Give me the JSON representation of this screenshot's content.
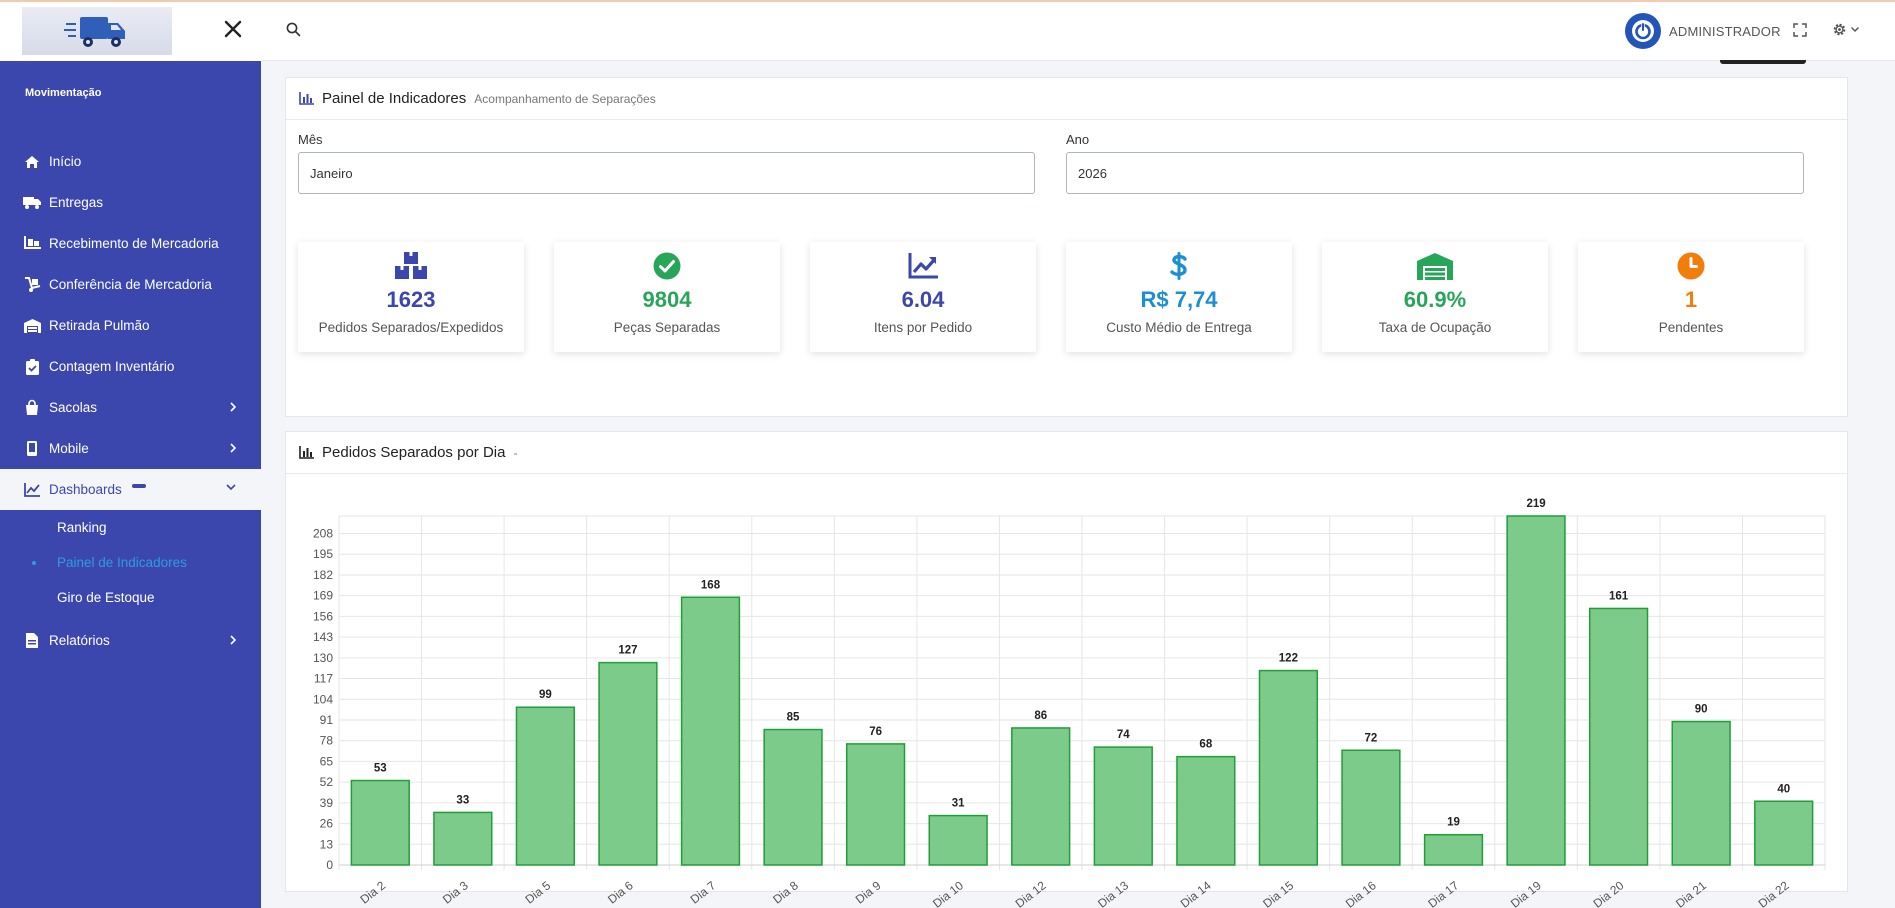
{
  "sidebar": {
    "section_title": "Movimentação",
    "items": [
      {
        "label": "Início",
        "icon": "home-icon"
      },
      {
        "label": "Entregas",
        "icon": "truck-icon"
      },
      {
        "label": "Recebimento de Mercadoria",
        "icon": "pallet-icon"
      },
      {
        "label": "Conferência de Mercadoria",
        "icon": "dolly-icon"
      },
      {
        "label": "Retirada Pulmão",
        "icon": "warehouse-icon"
      },
      {
        "label": "Contagem Inventário",
        "icon": "clipboard-check-icon"
      },
      {
        "label": "Sacolas",
        "icon": "bag-icon"
      },
      {
        "label": "Mobile",
        "icon": "mobile-icon"
      },
      {
        "label": "Dashboards",
        "icon": "chart-line-icon"
      },
      {
        "label": "Relatórios",
        "icon": "file-icon"
      }
    ],
    "dashboards_sub": [
      "Ranking",
      "Painel de Indicadores",
      "Giro de Estoque"
    ]
  },
  "header": {
    "user_name": "ADMINISTRADOR"
  },
  "panel": {
    "title": "Painel de Indicadores",
    "subtitle": "Acompanhamento de Separações",
    "mes_label": "Mês",
    "mes_value": "Janeiro",
    "ano_label": "Ano",
    "ano_value": "2026"
  },
  "kpis": [
    {
      "value": "1623",
      "label": "Pedidos Separados/Expedidos",
      "color": "#3b47ad"
    },
    {
      "value": "9804",
      "label": "Peças Separadas",
      "color": "#27a65a"
    },
    {
      "value": "6.04",
      "label": "Itens por Pedido",
      "color": "#3b47ad"
    },
    {
      "value": "R$ 7,74",
      "label": "Custo Médio de Entrega",
      "color": "#1b8fd0"
    },
    {
      "value": "60.9%",
      "label": "Taxa de Ocupação",
      "color": "#27a65a"
    },
    {
      "value": "1",
      "label": "Pendentes",
      "color": "#f07d0c"
    }
  ],
  "chart_card": {
    "title": "Pedidos Separados por Dia",
    "subtitle": "-"
  },
  "chart_data": {
    "type": "bar",
    "categories": [
      "Dia 2",
      "Dia 3",
      "Dia 5",
      "Dia 6",
      "Dia 7",
      "Dia 8",
      "Dia 9",
      "Dia 10",
      "Dia 12",
      "Dia 13",
      "Dia 14",
      "Dia 15",
      "Dia 16",
      "Dia 17",
      "Dia 19",
      "Dia 20",
      "Dia 21",
      "Dia 22"
    ],
    "values": [
      53,
      33,
      99,
      127,
      168,
      85,
      76,
      31,
      86,
      74,
      68,
      122,
      72,
      19,
      219,
      161,
      90,
      40
    ],
    "yticks": [
      0,
      13,
      26,
      39,
      52,
      65,
      78,
      91,
      104,
      117,
      130,
      143,
      156,
      169,
      182,
      195,
      208
    ],
    "ylim": [
      0,
      219
    ],
    "grid": true,
    "bar_color": "#7dcb8a",
    "bar_border": "#1f9e3a"
  }
}
